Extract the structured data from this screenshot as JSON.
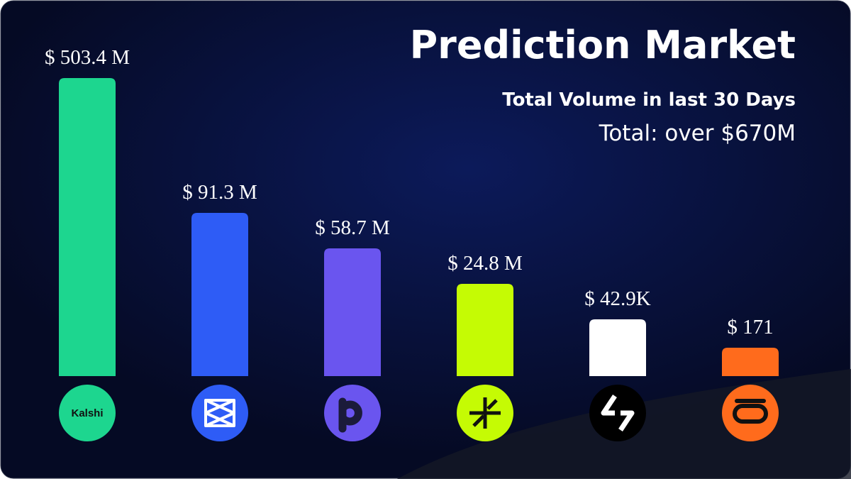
{
  "header": {
    "title": "Prediction Market",
    "subtitle": "Total Volume in last 30 Days",
    "total": "Total: over $670M"
  },
  "bars": [
    {
      "label": "$ 503.4 M",
      "color": "#1dd68f",
      "logo": "Kalshi"
    },
    {
      "label": "$ 91.3 M",
      "color": "#2e5cf6"
    },
    {
      "label": "$ 58.7 M",
      "color": "#6a55ef"
    },
    {
      "label": "$ 24.8 M",
      "color": "#c5fb04"
    },
    {
      "label": "$ 42.9K",
      "color": "#ffffff"
    },
    {
      "label": "$ 171",
      "color": "#ff6b1c"
    }
  ]
}
